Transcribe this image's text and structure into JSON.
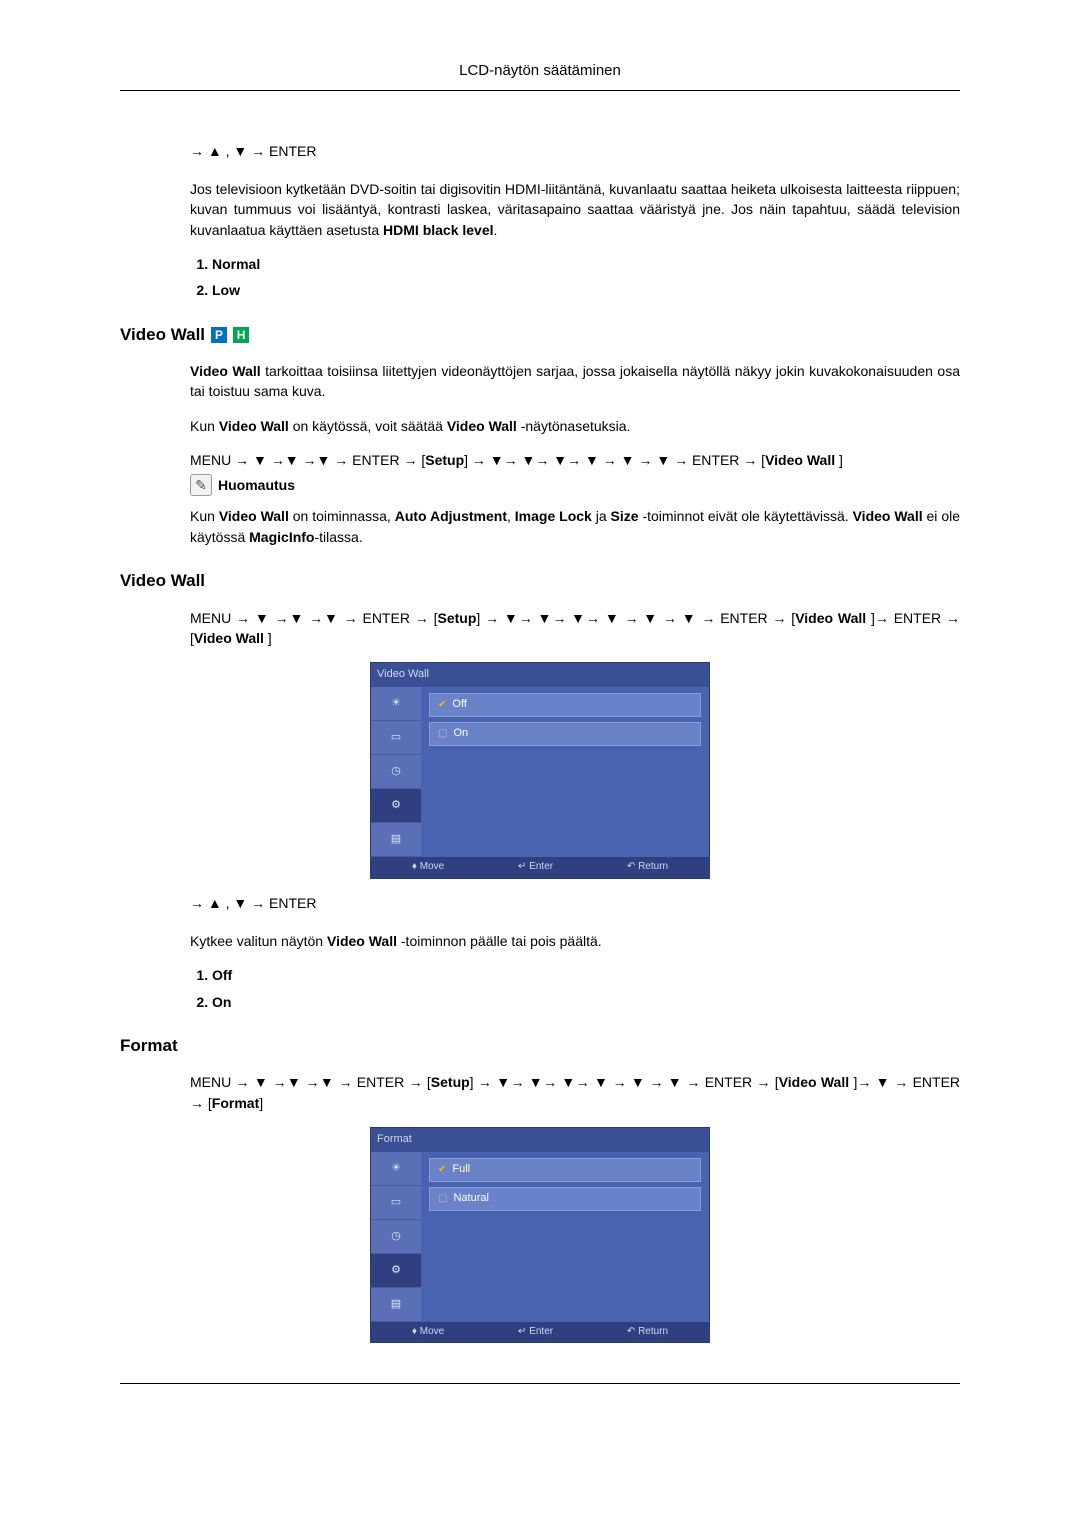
{
  "header": {
    "title": "LCD-näytön säätäminen"
  },
  "nav_line": "→ ▲ , ▼ → ENTER",
  "hdmi_black_level": {
    "paragraph_pre": "Jos televisioon kytketään DVD-soitin tai digisovitin HDMI-liitäntänä, kuvanlaatu saattaa heiketa ulkoisesta laitteesta riippuen; kuvan tummuus voi lisääntyä, kontrasti laskea, väritasapaino saattaa vääristyä jne. Jos näin tapahtuu, säädä television kuvanlaatua käyttäen asetusta ",
    "paragraph_bold": "HDMI black level",
    "options": [
      "Normal",
      "Low"
    ]
  },
  "video_wall_intro": {
    "heading": "Video Wall",
    "para1_pre": "",
    "para1": "Video Wall tarkoittaa toisiinsa liitettyjen videonäyttöjen sarjaa, jossa jokaisella näytöllä näkyy jokin kuvakokonaisuuden osa tai toistuu sama kuva.",
    "para1_bold": "Video Wall",
    "para2_pre": "Kun ",
    "para2_mid": " on käytössä, voit säätää ",
    "para2_end": " -näytönasetuksia.",
    "menu_path_a": "MENU → ▼ →▼ →▼ → ENTER → [",
    "setup": "Setup",
    "menu_path_b": "] → ▼→ ▼→ ▼→ ▼ → ▼ → ▼ → ENTER → [",
    "vw": "Video Wall",
    "menu_path_c": " ]",
    "note_label": "Huomautus",
    "note_text_a": "Kun ",
    "note_text_b": " on toiminnassa, ",
    "auto_adj": "Auto Adjustment",
    "image_lock": "Image Lock",
    "size": "Size",
    "note_text_c": " -toiminnot eivät ole käytettävissä. ",
    "note_text_d": " ei ole käytössä ",
    "magicinfo": "MagicInfo",
    "note_text_e": "-tilassa."
  },
  "video_wall_section": {
    "heading": "Video Wall",
    "menu_path_a": "MENU → ▼ →▼ →▼ → ENTER → [",
    "setup": "Setup",
    "menu_path_b": "] → ▼→ ▼→ ▼→ ▼ → ▼ → ▼ → ENTER → [",
    "vw": "Video Wall",
    "menu_path_c": " ]→ ENTER → [",
    "vw2": "Video Wall",
    "menu_path_d": " ]",
    "osd": {
      "title": "Video Wall",
      "options": [
        "Off",
        "On"
      ],
      "selected_index": 0,
      "footer": [
        "Move",
        "Enter",
        "Return"
      ]
    },
    "nav_line": "→ ▲ , ▼ → ENTER",
    "desc_pre": "Kytkee valitun näytön ",
    "desc_bold": "Video Wall",
    "desc_post": " -toiminnon päälle tai pois päältä.",
    "enum": [
      "Off",
      "On"
    ]
  },
  "format_section": {
    "heading": "Format",
    "menu_path_a": "MENU → ▼ →▼ →▼ → ENTER → [",
    "setup": "Setup",
    "menu_path_b": "] → ▼→ ▼→ ▼→ ▼ → ▼ → ▼ → ENTER → [",
    "vw": "Video Wall",
    "menu_path_c": " ]→ ▼ → ENTER → [",
    "fmt": "Format",
    "menu_path_d": "]",
    "osd": {
      "title": "Format",
      "options": [
        "Full",
        "Natural"
      ],
      "selected_index": 0,
      "footer": [
        "Move",
        "Enter",
        "Return"
      ]
    }
  },
  "colors": {
    "osd_bg": "#3f5aa9",
    "osd_side": "#5a6fb5",
    "osd_side_sel": "#2f3f80",
    "osd_opt": "#6a82c8",
    "osd_footer": "#2f3f80",
    "badge_p": "#0070c0",
    "badge_h": "#00a651"
  }
}
